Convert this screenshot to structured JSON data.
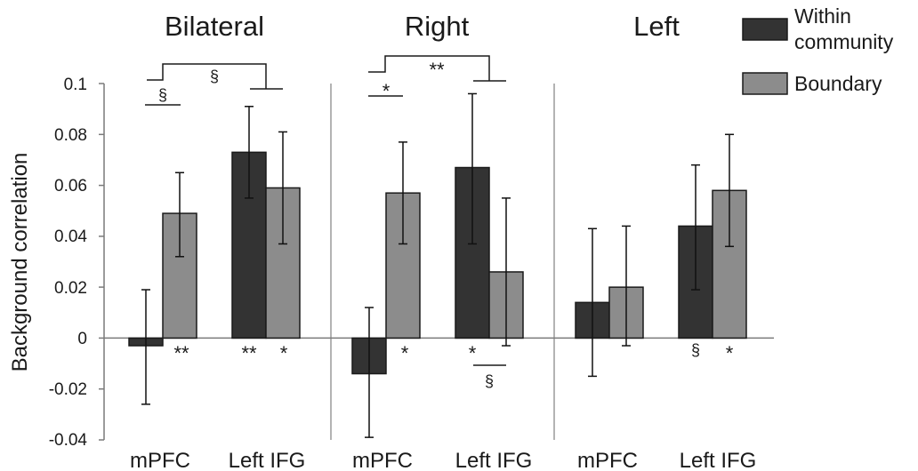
{
  "chart_data": {
    "type": "bar",
    "ylabel": "Background correlation",
    "ylim": [
      -0.04,
      0.1
    ],
    "yticks": [
      "0.1",
      "0.08",
      "0.06",
      "0.04",
      "0.02",
      "0",
      "-0.02",
      "-0.04"
    ],
    "grid": false,
    "legend_position": "top-right",
    "series": [
      {
        "name": "Within community",
        "color": "#333333"
      },
      {
        "name": "Boundary",
        "color": "#8c8c8c"
      }
    ],
    "panels": [
      {
        "title": "Bilateral",
        "groups": [
          {
            "label": "mPFC",
            "within": {
              "value": -0.003,
              "err_low": -0.026,
              "err_high": 0.019
            },
            "boundary": {
              "value": 0.049,
              "err_low": 0.032,
              "err_high": 0.065
            },
            "within_sig": "",
            "boundary_sig": "**"
          },
          {
            "label": "Left IFG",
            "within": {
              "value": 0.073,
              "err_low": 0.055,
              "err_high": 0.091
            },
            "boundary": {
              "value": 0.059,
              "err_low": 0.037,
              "err_high": 0.081
            },
            "within_sig": "**",
            "boundary_sig": "*"
          }
        ],
        "brackets": [
          {
            "label": "§",
            "pair": "mPFC within vs boundary"
          },
          {
            "label": "§",
            "pair": "mPFC vs Left IFG"
          }
        ]
      },
      {
        "title": "Right",
        "groups": [
          {
            "label": "mPFC",
            "within": {
              "value": -0.014,
              "err_low": -0.039,
              "err_high": 0.012
            },
            "boundary": {
              "value": 0.057,
              "err_low": 0.037,
              "err_high": 0.077
            },
            "within_sig": "",
            "boundary_sig": "*"
          },
          {
            "label": "Left IFG",
            "within": {
              "value": 0.067,
              "err_low": 0.037,
              "err_high": 0.096
            },
            "boundary": {
              "value": 0.026,
              "err_low": -0.003,
              "err_high": 0.055
            },
            "within_sig": "*",
            "boundary_sig": ""
          }
        ],
        "brackets": [
          {
            "label": "*",
            "pair": "mPFC within vs boundary"
          },
          {
            "label": "**",
            "pair": "mPFC vs Left IFG"
          },
          {
            "label": "§",
            "pair": "Left IFG within vs boundary"
          }
        ]
      },
      {
        "title": "Left",
        "groups": [
          {
            "label": "mPFC",
            "within": {
              "value": 0.014,
              "err_low": -0.015,
              "err_high": 0.043
            },
            "boundary": {
              "value": 0.02,
              "err_low": -0.003,
              "err_high": 0.044
            },
            "within_sig": "",
            "boundary_sig": ""
          },
          {
            "label": "Left IFG",
            "within": {
              "value": 0.044,
              "err_low": 0.019,
              "err_high": 0.068
            },
            "boundary": {
              "value": 0.058,
              "err_low": 0.036,
              "err_high": 0.08
            },
            "within_sig": "§",
            "boundary_sig": "*"
          }
        ],
        "brackets": []
      }
    ]
  }
}
